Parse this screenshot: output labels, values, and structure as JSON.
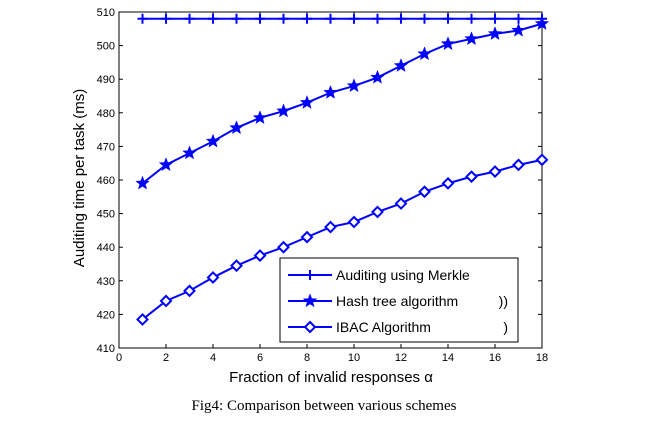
{
  "chart_data": {
    "type": "line",
    "xlabel": "Fraction of invalid responses α",
    "ylabel": "Auditing time per task (ms)",
    "xlim": [
      0,
      18
    ],
    "ylim": [
      410,
      510
    ],
    "xticks": [
      0,
      2,
      4,
      6,
      8,
      10,
      12,
      14,
      16,
      18
    ],
    "yticks": [
      410,
      420,
      430,
      440,
      450,
      460,
      470,
      480,
      490,
      500,
      510
    ],
    "grid": false,
    "legend_position": "bottom-right",
    "x": [
      1,
      2,
      3,
      4,
      5,
      6,
      7,
      8,
      9,
      10,
      11,
      12,
      13,
      14,
      15,
      16,
      17,
      18
    ],
    "series": [
      {
        "name": "Auditing using Merkle",
        "marker": "plus",
        "color": "#0000ff",
        "values": [
          508,
          508,
          508,
          508,
          508,
          508,
          508,
          508,
          508,
          508,
          508,
          508,
          508,
          508,
          508,
          508,
          508,
          508
        ]
      },
      {
        "name": "Hash tree algorithm",
        "marker": "star",
        "color": "#0000ff",
        "values": [
          459,
          464.5,
          468,
          471.5,
          475.5,
          478.5,
          480.5,
          483,
          486,
          488,
          490.5,
          494,
          497.5,
          500.5,
          502,
          503.5,
          504.5,
          506.5
        ]
      },
      {
        "name": "IBAC Algorithm",
        "marker": "diamond",
        "color": "#0000ff",
        "values": [
          418.5,
          424,
          427,
          431,
          434.5,
          437.5,
          440,
          443,
          446,
          447.5,
          450.5,
          453,
          456.5,
          459,
          461,
          462.5,
          464.5,
          466
        ]
      }
    ],
    "legend_artifacts": [
      "))",
      ")"
    ]
  },
  "caption": "Fig4: Comparison between various schemes"
}
